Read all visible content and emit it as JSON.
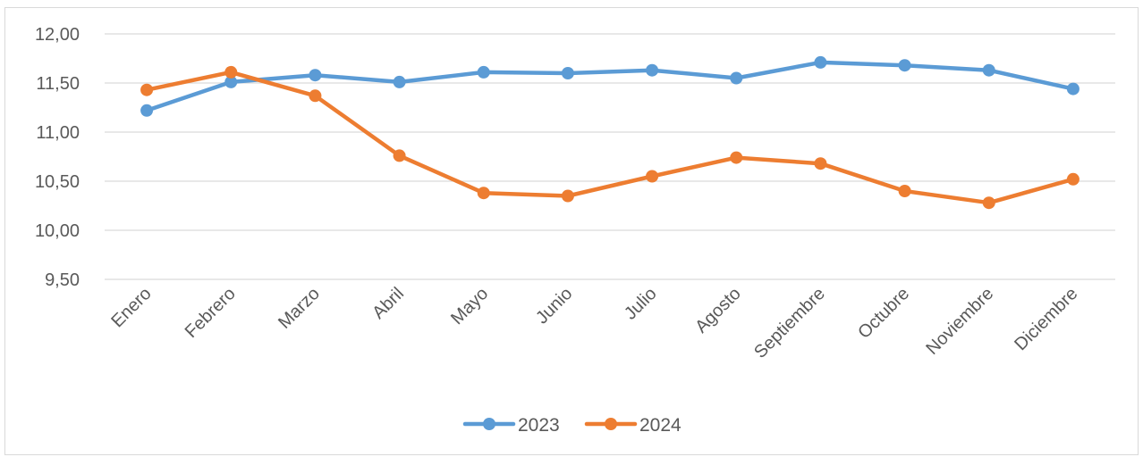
{
  "chart_data": {
    "type": "line",
    "title": "",
    "xlabel": "",
    "ylabel": "",
    "categories": [
      "Enero",
      "Febrero",
      "Marzo",
      "Abril",
      "Mayo",
      "Junio",
      "Julio",
      "Agosto",
      "Septiembre",
      "Octubre",
      "Noviembre",
      "Diciembre"
    ],
    "ylim": [
      9.5,
      12.0
    ],
    "yticks": [
      9.5,
      10.0,
      10.5,
      11.0,
      11.5,
      12.0
    ],
    "ytick_labels": [
      "9,50",
      "10,00",
      "10,50",
      "11,00",
      "11,50",
      "12,00"
    ],
    "grid": true,
    "legend_position": "bottom",
    "series": [
      {
        "name": "2023",
        "color": "#5b9bd5",
        "values": [
          11.22,
          11.51,
          11.58,
          11.51,
          11.61,
          11.6,
          11.63,
          11.55,
          11.71,
          11.68,
          11.63,
          11.44
        ]
      },
      {
        "name": "2024",
        "color": "#ed7d31",
        "values": [
          11.43,
          11.61,
          11.37,
          10.76,
          10.38,
          10.35,
          10.55,
          10.74,
          10.68,
          10.4,
          10.28,
          10.52
        ]
      }
    ]
  }
}
